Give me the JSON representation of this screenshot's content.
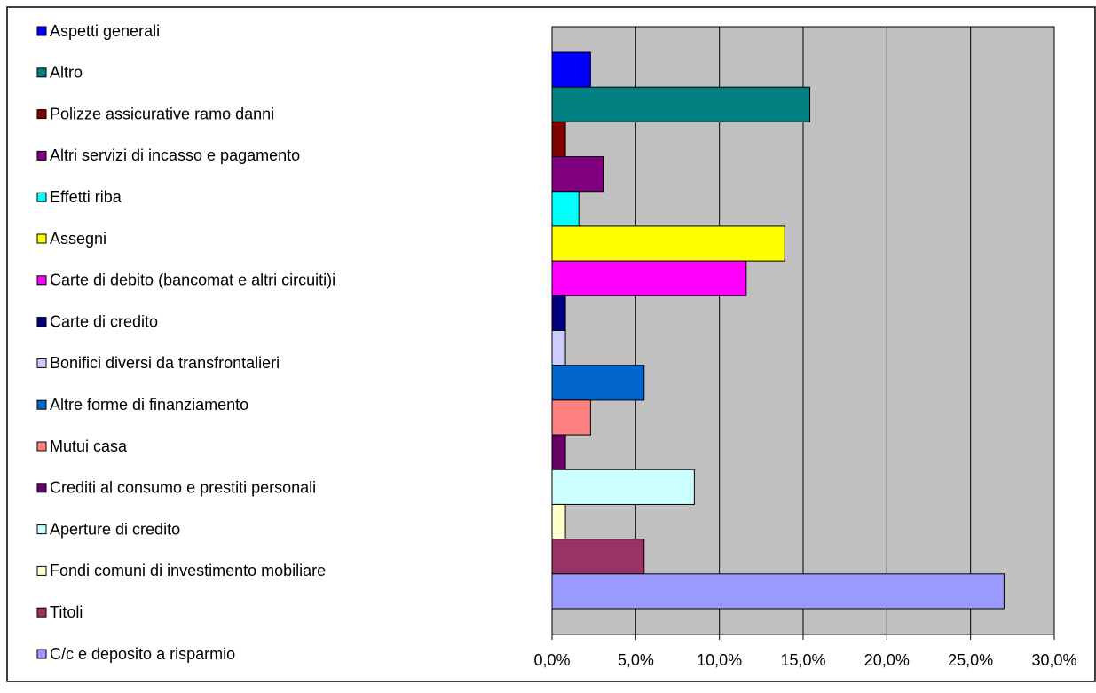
{
  "chart_data": {
    "type": "bar",
    "orientation": "horizontal",
    "categories": [
      "Aspetti generali",
      "Altro",
      "Polizze assicurative ramo danni",
      "Altri servizi di incasso e pagamento",
      "Effetti riba",
      "Assegni",
      "Carte di debito (bancomat e altri circuiti)i",
      "Carte di credito",
      "Bonifici diversi da transfrontalieri",
      "Altre forme di finanziamento",
      "Mutui casa",
      "Crediti al consumo e prestiti personali",
      "Aperture di credito",
      "Fondi comuni di investimento mobiliare",
      "Titoli",
      "C/c e deposito a risparmio"
    ],
    "values": [
      2.3,
      15.4,
      0.8,
      3.1,
      1.6,
      13.9,
      11.6,
      0.8,
      0.8,
      5.5,
      2.3,
      0.8,
      8.5,
      0.8,
      5.5,
      27.0
    ],
    "colors": [
      "#0000ff",
      "#008080",
      "#800000",
      "#800080",
      "#00ffff",
      "#ffff00",
      "#ff00ff",
      "#000080",
      "#ccccff",
      "#0066cc",
      "#ff8080",
      "#660066",
      "#ccffff",
      "#ffffcc",
      "#993366",
      "#9999ff"
    ],
    "xlim": [
      0,
      30
    ],
    "xticks": [
      {
        "value": 0,
        "label": "0,0%"
      },
      {
        "value": 5,
        "label": "5,0%"
      },
      {
        "value": 10,
        "label": "10,0%"
      },
      {
        "value": 15,
        "label": "15,0%"
      },
      {
        "value": 20,
        "label": "20,0%"
      },
      {
        "value": 25,
        "label": "25,0%"
      },
      {
        "value": 30,
        "label": "30,0%"
      }
    ],
    "grid": true,
    "legend": "left"
  }
}
